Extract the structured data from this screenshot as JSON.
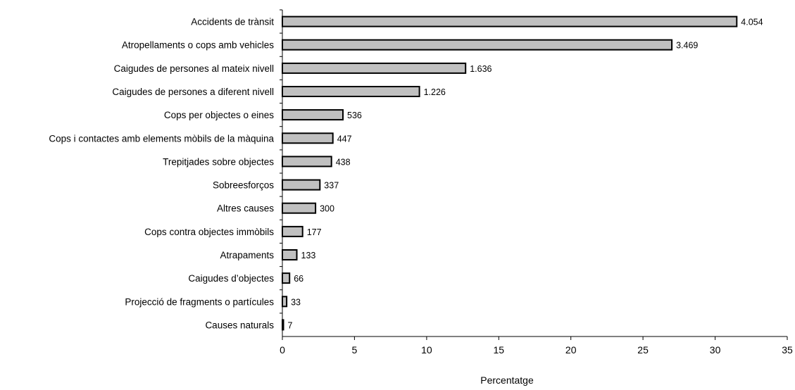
{
  "chart_data": {
    "type": "bar",
    "orientation": "horizontal",
    "categories": [
      "Accidents de trànsit",
      "Atropellaments o cops amb vehicles",
      "Caigudes de persones al mateix nivell",
      "Caigudes de persones a diferent nivell",
      "Cops per objectes o eines",
      "Cops i contactes amb elements mòbils de la màquina",
      "Trepitjades sobre objectes",
      "Sobreesforços",
      "Altres causes",
      "Cops contra objectes immòbils",
      "Atrapaments",
      "Caigudes d’objectes",
      "Projecció de fragments o partícules",
      "Causes naturals"
    ],
    "values": [
      31.5,
      27.0,
      12.7,
      9.5,
      4.2,
      3.5,
      3.4,
      2.6,
      2.3,
      1.4,
      1.0,
      0.5,
      0.3,
      0.05
    ],
    "data_labels": [
      "4.054",
      "3.469",
      "1.636",
      "1.226",
      "536",
      "447",
      "438",
      "337",
      "300",
      "177",
      "133",
      "66",
      "33",
      "7"
    ],
    "xlabel": "Percentatge",
    "ylabel": "",
    "title": "",
    "xlim": [
      0,
      35
    ],
    "xticks": [
      0,
      5,
      10,
      15,
      20,
      25,
      30,
      35
    ],
    "grid": false,
    "legend": "none",
    "bar_color": "#c0c0c0",
    "bar_edge_color": "#000000"
  }
}
